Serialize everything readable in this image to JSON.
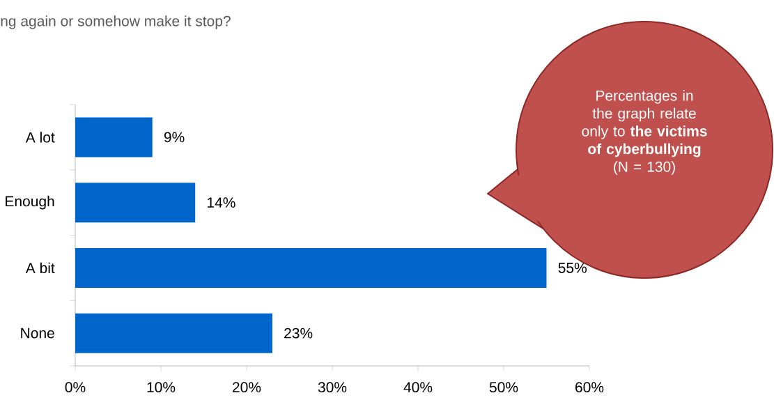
{
  "chart_data": {
    "type": "bar",
    "orientation": "horizontal",
    "title": "ng again or somehow make it stop?",
    "categories": [
      "A lot",
      "Enough",
      "A bit",
      "None"
    ],
    "values": [
      9,
      14,
      55,
      23
    ],
    "value_labels": [
      "9%",
      "14%",
      "55%",
      "23%"
    ],
    "color": "#0066cc",
    "xlim": [
      0,
      60
    ],
    "xticks": [
      {
        "value": 0,
        "label": "0%"
      },
      {
        "value": 10,
        "label": "10%"
      },
      {
        "value": 20,
        "label": "20%"
      },
      {
        "value": 30,
        "label": "30%"
      },
      {
        "value": 40,
        "label": "40%"
      },
      {
        "value": 50,
        "label": "50%"
      },
      {
        "value": 60,
        "label": "60%"
      }
    ],
    "annotations": [
      "Percentages in the graph relate only to **the victims of cyberbullying** (N = 130)"
    ]
  }
}
